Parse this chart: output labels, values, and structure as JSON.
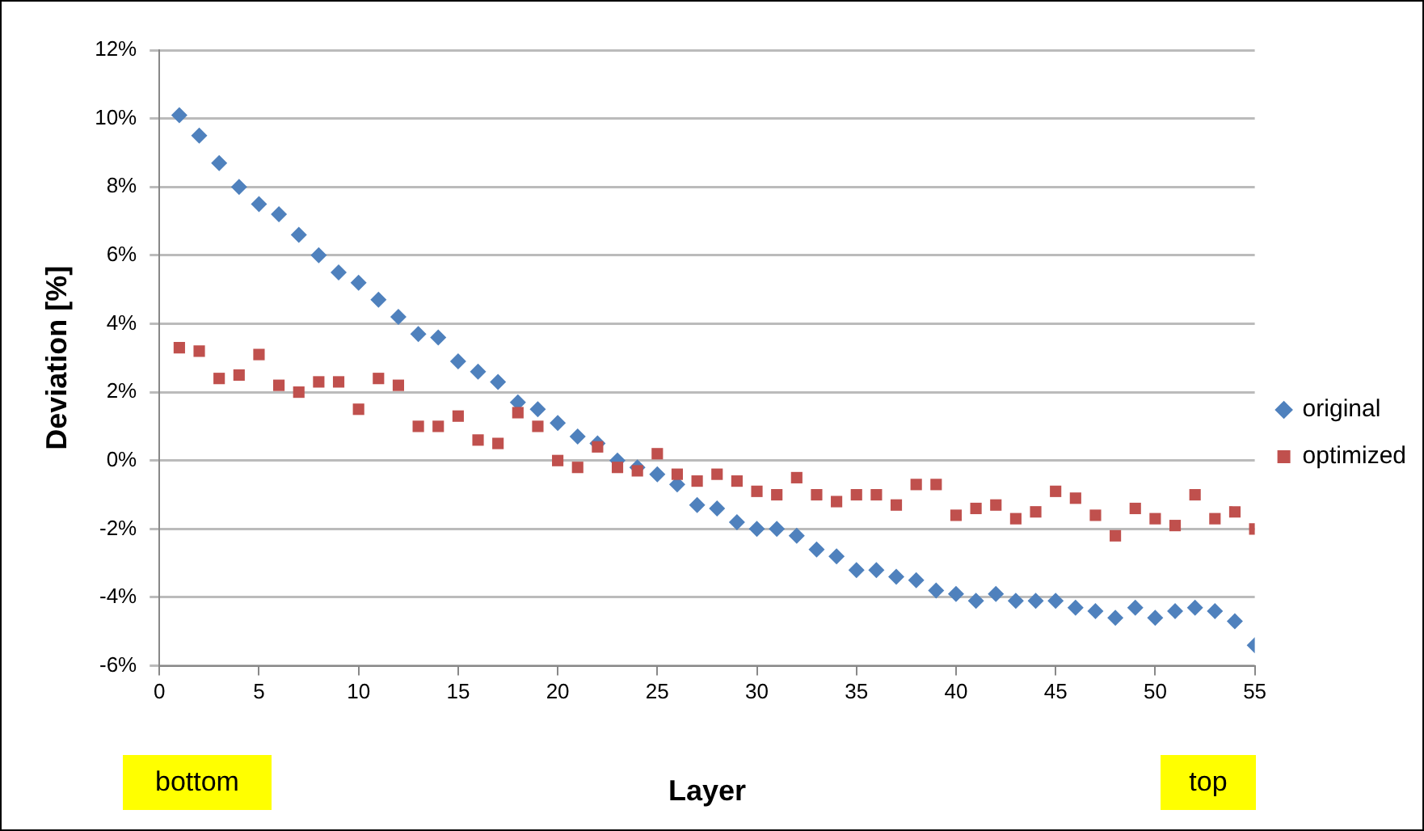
{
  "chart_data": {
    "type": "scatter",
    "xlabel": "Layer",
    "ylabel": "Deviation [%]",
    "x": [
      1,
      2,
      3,
      4,
      5,
      6,
      7,
      8,
      9,
      10,
      11,
      12,
      13,
      14,
      15,
      16,
      17,
      18,
      19,
      20,
      21,
      22,
      23,
      24,
      25,
      26,
      27,
      28,
      29,
      30,
      31,
      32,
      33,
      34,
      35,
      36,
      37,
      38,
      39,
      40,
      41,
      42,
      43,
      44,
      45,
      46,
      47,
      48,
      49,
      50,
      51,
      52,
      53,
      54,
      55
    ],
    "series": [
      {
        "name": "original",
        "color": "#4f81bd",
        "marker": "diamond",
        "values": [
          10.1,
          9.5,
          8.7,
          8.0,
          7.5,
          7.2,
          6.6,
          6.0,
          5.5,
          5.2,
          4.7,
          4.2,
          3.7,
          3.6,
          2.9,
          2.6,
          2.3,
          1.7,
          1.5,
          1.1,
          0.7,
          0.5,
          0.0,
          -0.2,
          -0.4,
          -0.7,
          -1.3,
          -1.4,
          -1.8,
          -2.0,
          -2.0,
          -2.2,
          -2.6,
          -2.8,
          -3.2,
          -3.2,
          -3.4,
          -3.5,
          -3.8,
          -3.9,
          -4.1,
          -3.9,
          -4.1,
          -4.1,
          -4.1,
          -4.3,
          -4.4,
          -4.6,
          -4.3,
          -4.6,
          -4.4,
          -4.3,
          -4.4,
          -4.7,
          -5.4
        ]
      },
      {
        "name": "optimized",
        "color": "#c0504d",
        "marker": "square",
        "values": [
          3.3,
          3.2,
          2.4,
          2.5,
          3.1,
          2.2,
          2.0,
          2.3,
          2.3,
          1.5,
          2.4,
          2.2,
          1.0,
          1.0,
          1.3,
          0.6,
          0.5,
          1.4,
          1.0,
          0.0,
          -0.2,
          0.4,
          -0.2,
          -0.3,
          0.2,
          -0.4,
          -0.6,
          -0.4,
          -0.6,
          -0.9,
          -1.0,
          -0.5,
          -1.0,
          -1.2,
          -1.0,
          -1.0,
          -1.3,
          -0.7,
          -0.7,
          -1.6,
          -1.4,
          -1.3,
          -1.7,
          -1.5,
          -0.9,
          -1.1,
          -1.6,
          -2.2,
          -1.4,
          -1.7,
          -1.9,
          -1.0,
          -1.7,
          -1.5,
          -2.0
        ]
      }
    ],
    "xlim": [
      0,
      55
    ],
    "xticks": [
      0,
      5,
      10,
      15,
      20,
      25,
      30,
      35,
      40,
      45,
      50,
      55
    ],
    "ylim": [
      -6,
      12
    ],
    "yticks": [
      {
        "value": -6,
        "label": "-6%"
      },
      {
        "value": -4,
        "label": "-4%"
      },
      {
        "value": -2,
        "label": "-2%"
      },
      {
        "value": 0,
        "label": "0%"
      },
      {
        "value": 2,
        "label": "2%"
      },
      {
        "value": 4,
        "label": "4%"
      },
      {
        "value": 6,
        "label": "6%"
      },
      {
        "value": 8,
        "label": "8%"
      },
      {
        "value": 10,
        "label": "10%"
      },
      {
        "value": 12,
        "label": "12%"
      }
    ],
    "grid": "y",
    "legend": "right",
    "annotations": [
      "bottom",
      "top"
    ]
  }
}
